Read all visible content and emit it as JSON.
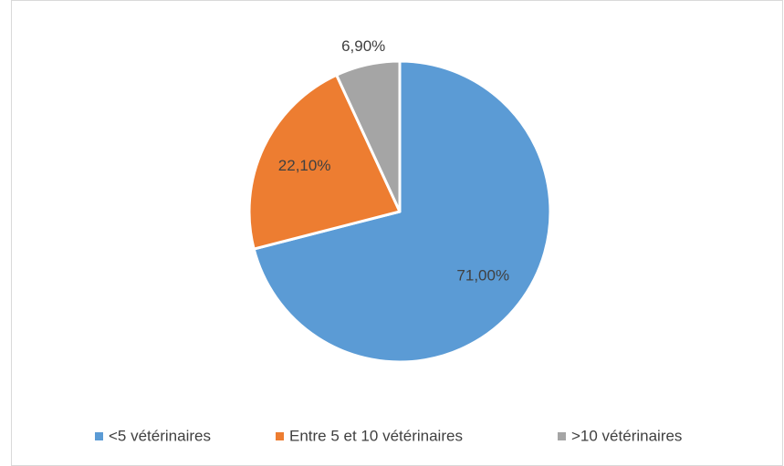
{
  "chart_data": {
    "type": "pie",
    "categories": [
      "<5 vétérinaires",
      "Entre 5 et 10 vétérinaires",
      ">10 vétérinaires"
    ],
    "values": [
      71,
      22.1,
      6.9
    ],
    "value_labels": [
      "71,00%",
      "22,10%",
      "6,90%"
    ],
    "colors": [
      "#5b9bd5",
      "#ed7d31",
      "#a5a5a5"
    ],
    "legend": "bottom"
  }
}
